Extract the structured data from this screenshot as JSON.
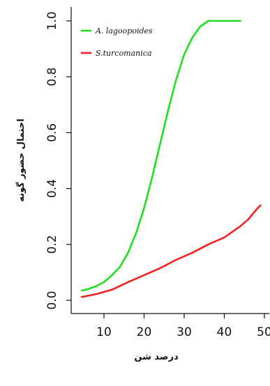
{
  "chart_data": {
    "type": "line",
    "title": "",
    "xlabel": "درصد شن",
    "ylabel": "احتمال حضور گونه",
    "xlim": [
      4,
      50
    ],
    "ylim": [
      0,
      1.0
    ],
    "x_ticks": [
      "10",
      "20",
      "30",
      "40",
      "50"
    ],
    "y_ticks": [
      "0.0",
      "0.2",
      "0.4",
      "0.6",
      "0.8",
      "1.0"
    ],
    "grid": false,
    "legend_position": "top-left",
    "series": [
      {
        "name": "A. lagoopoides",
        "color": "#22dd22",
        "x": [
          4.5,
          6,
          8,
          10,
          12,
          14,
          16,
          18,
          20,
          22,
          24,
          26,
          28,
          30,
          32,
          34,
          35,
          36,
          37,
          38,
          40,
          42,
          44
        ],
        "y": [
          0.035,
          0.04,
          0.05,
          0.065,
          0.09,
          0.12,
          0.17,
          0.24,
          0.33,
          0.44,
          0.56,
          0.68,
          0.79,
          0.88,
          0.94,
          0.98,
          0.99,
          1.0,
          1.0,
          1.0,
          1.0,
          1.0,
          1.0
        ]
      },
      {
        "name": "S.turcomanica",
        "color": "#ee2222",
        "x": [
          4.5,
          8,
          12,
          16,
          20,
          24,
          28,
          32,
          36,
          40,
          44,
          46,
          48,
          49
        ],
        "y": [
          0.012,
          0.022,
          0.038,
          0.065,
          0.09,
          0.115,
          0.145,
          0.17,
          0.2,
          0.225,
          0.265,
          0.29,
          0.325,
          0.34
        ]
      }
    ]
  },
  "colors": {
    "axis": "#111111",
    "background": "#ffffff"
  }
}
